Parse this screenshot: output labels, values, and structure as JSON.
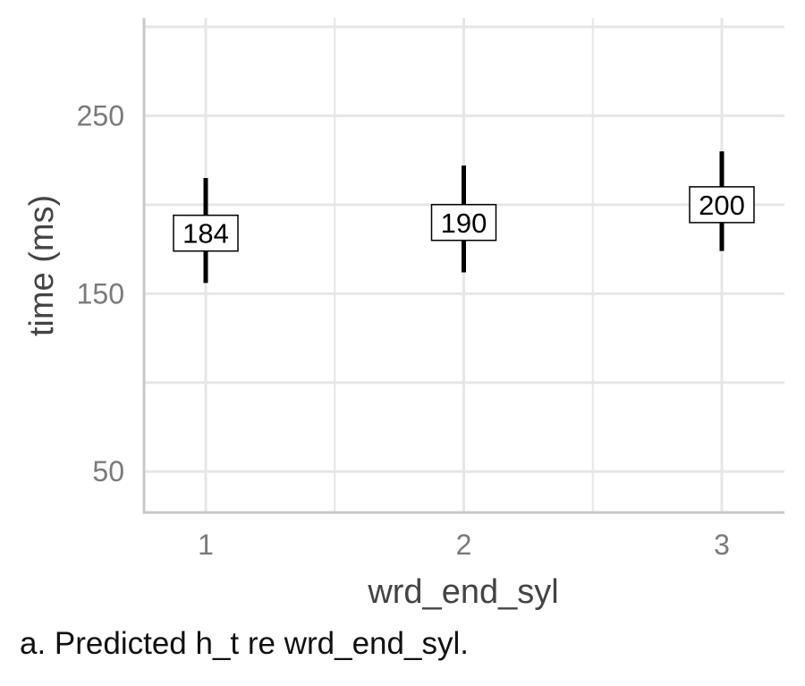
{
  "chart_data": {
    "type": "errorbar",
    "xlabel": "wrd_end_syl",
    "ylabel": "time (ms)",
    "x_ticks": [
      "1",
      "2",
      "3"
    ],
    "y_ticks": [
      "50",
      "150",
      "250"
    ],
    "y_tick_values": [
      50,
      150,
      250
    ],
    "ylim": [
      27,
      305
    ],
    "grid": true,
    "points": [
      {
        "x": "1",
        "y": 184,
        "label": "184",
        "lower": 156,
        "upper": 215
      },
      {
        "x": "2",
        "y": 190,
        "label": "190",
        "lower": 162,
        "upper": 222
      },
      {
        "x": "3",
        "y": 200,
        "label": "200",
        "lower": 174,
        "upper": 230
      }
    ]
  },
  "caption": "a. Predicted h_t re wrd_end_syl."
}
